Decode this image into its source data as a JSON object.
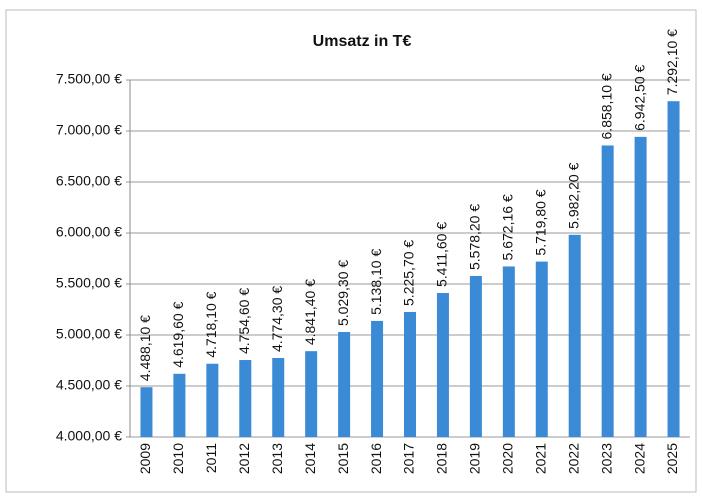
{
  "chart_data": {
    "type": "bar",
    "title": "Umsatz in T€",
    "categories": [
      "2009",
      "2010",
      "2011",
      "2012",
      "2013",
      "2014",
      "2015",
      "2016",
      "2017",
      "2018",
      "2019",
      "2020",
      "2021",
      "2022",
      "2023",
      "2024",
      "2025"
    ],
    "values": [
      4488.1,
      4619.6,
      4718.1,
      4754.6,
      4774.3,
      4841.4,
      5029.3,
      5138.1,
      5225.7,
      5411.6,
      5578.2,
      5672.16,
      5719.8,
      5982.2,
      6858.1,
      6942.5,
      7292.1
    ],
    "value_labels": [
      "4.488,10 €",
      "4.619,60 €",
      "4.718,10 €",
      "4.754,60 €",
      "4.774,30 €",
      "4.841,40 €",
      "5.029,30 €",
      "5.138,10 €",
      "5.225,70 €",
      "5.411,60 €",
      "5.578,20 €",
      "5.672,16 €",
      "5.719,80 €",
      "5.982,20 €",
      "6.858,10 €",
      "6.942,50 €",
      "7.292,10 €"
    ],
    "color": "#3a8ad6",
    "ylim": [
      4000,
      7500
    ],
    "yticks": [
      {
        "value": 4000,
        "label": "4.000,00 €"
      },
      {
        "value": 4500,
        "label": "4.500,00 €"
      },
      {
        "value": 5000,
        "label": "5.000,00 €"
      },
      {
        "value": 5500,
        "label": "5.500,00 €"
      },
      {
        "value": 6000,
        "label": "6.000,00 €"
      },
      {
        "value": 6500,
        "label": "6.500,00 €"
      },
      {
        "value": 7000,
        "label": "7.000,00 €"
      },
      {
        "value": 7500,
        "label": "7.500,00 €"
      }
    ],
    "grid": true
  }
}
